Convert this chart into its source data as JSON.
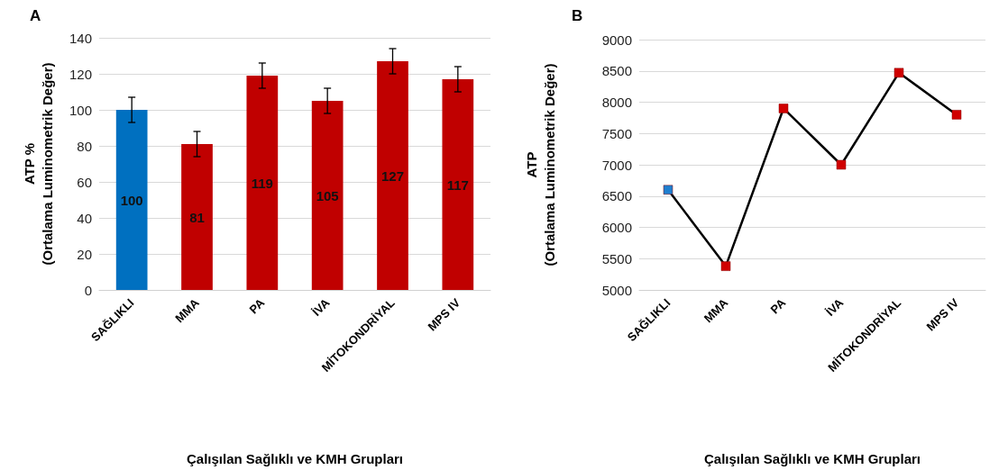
{
  "chart_data": [
    {
      "type": "bar",
      "title": "A",
      "xlabel": "Çalışılan Sağlıklı ve KMH Grupları",
      "ylabel": "ATP %\n(Ortalama Luminometrik Değer)",
      "categories": [
        "SAĞLIKLI",
        "MMA",
        "PA",
        "İVA",
        "MİTOKONDRİYAL",
        "MPS IV"
      ],
      "values": [
        100,
        81,
        119,
        105,
        127,
        117
      ],
      "errors": [
        7,
        7,
        7,
        7,
        7,
        7
      ],
      "colors": [
        "#0070c0",
        "#c00000",
        "#c00000",
        "#c00000",
        "#c00000",
        "#c00000"
      ],
      "ylim": [
        0,
        140
      ],
      "yticks": [
        0,
        20,
        40,
        60,
        80,
        100,
        120,
        140
      ],
      "grid": "y",
      "data_labels": true
    },
    {
      "type": "line",
      "title": "B",
      "xlabel": "Çalışılan Sağlıklı ve KMH Grupları",
      "ylabel": "ATP\n(Ortalama Luminometrik Değer)",
      "categories": [
        "SAĞLIKLI",
        "MMA",
        "PA",
        "İVA",
        "MİTOKONDRİYAL",
        "MPS IV"
      ],
      "series": [
        {
          "color": "#000000",
          "colors": [
            "#1f7fd0",
            "#d00000",
            "#d00000",
            "#d00000",
            "#d00000",
            "#d00000"
          ],
          "values": [
            6600,
            5380,
            7900,
            7000,
            8470,
            7800
          ]
        }
      ],
      "ylim": [
        5000,
        9000
      ],
      "yticks": [
        5000,
        5500,
        6000,
        6500,
        7000,
        7500,
        8000,
        8500,
        9000
      ],
      "grid": "y",
      "marker": "square",
      "line_style": "solid"
    }
  ]
}
